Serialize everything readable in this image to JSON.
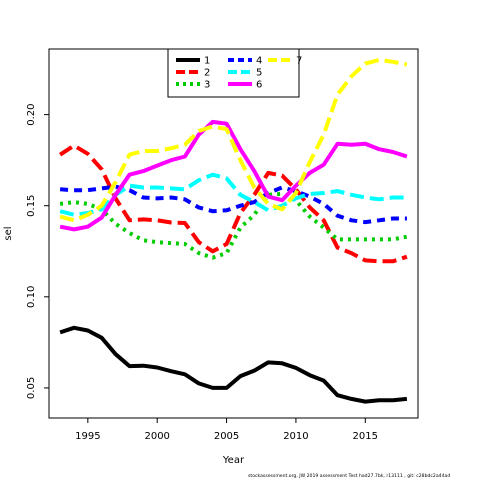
{
  "chart_data": {
    "type": "line",
    "xlabel": "Year",
    "ylabel": "sel",
    "xlim": [
      1992.2,
      2018.8
    ],
    "ylim": [
      0.0335,
      0.236
    ],
    "xticks": [
      1995,
      2000,
      2005,
      2010,
      2015
    ],
    "yticks": [
      0.05,
      0.1,
      0.15,
      0.2
    ],
    "xtick_labels": [
      "1995",
      "2000",
      "2005",
      "2010",
      "2015"
    ],
    "ytick_labels": [
      "0.05",
      "0.10",
      "0.15",
      "0.20"
    ],
    "legend_position": "top-center",
    "x": [
      1993,
      1994,
      1995,
      1996,
      1997,
      1998,
      1999,
      2000,
      2001,
      2002,
      2003,
      2004,
      2005,
      2006,
      2007,
      2008,
      2009,
      2010,
      2011,
      2012,
      2013,
      2014,
      2015,
      2016,
      2017,
      2018
    ],
    "series": [
      {
        "name": "1",
        "color": "#000000",
        "dash": "solid",
        "values": [
          0.0805,
          0.083,
          0.0815,
          0.0775,
          0.0685,
          0.062,
          0.0622,
          0.0612,
          0.0592,
          0.0575,
          0.0525,
          0.05,
          0.05,
          0.0565,
          0.0595,
          0.064,
          0.0635,
          0.061,
          0.057,
          0.054,
          0.046,
          0.044,
          0.0425,
          0.0432,
          0.0432,
          0.044
        ]
      },
      {
        "name": "2",
        "color": "#ff0000",
        "dash": "long",
        "values": [
          0.178,
          0.183,
          0.1785,
          0.17,
          0.154,
          0.142,
          0.1425,
          0.142,
          0.1408,
          0.1405,
          0.13,
          0.125,
          0.129,
          0.146,
          0.156,
          0.168,
          0.1665,
          0.159,
          0.149,
          0.142,
          0.127,
          0.124,
          0.12,
          0.1195,
          0.1195,
          0.122
        ]
      },
      {
        "name": "3",
        "color": "#00cd00",
        "dash": "dot",
        "values": [
          0.151,
          0.152,
          0.151,
          0.148,
          0.14,
          0.135,
          0.131,
          0.13,
          0.1295,
          0.129,
          0.124,
          0.1215,
          0.124,
          0.138,
          0.145,
          0.156,
          0.1565,
          0.153,
          0.144,
          0.138,
          0.1315,
          0.1315,
          0.1315,
          0.1315,
          0.1315,
          0.133
        ]
      },
      {
        "name": "4",
        "color": "#0000ff",
        "dash": "dash",
        "values": [
          0.159,
          0.1585,
          0.1585,
          0.1595,
          0.1605,
          0.1585,
          0.1545,
          0.154,
          0.1545,
          0.1535,
          0.149,
          0.147,
          0.1475,
          0.15,
          0.152,
          0.157,
          0.16,
          0.158,
          0.155,
          0.151,
          0.1445,
          0.142,
          0.141,
          0.142,
          0.143,
          0.143
        ]
      },
      {
        "name": "5",
        "color": "#00ffff",
        "dash": "long",
        "values": [
          0.147,
          0.145,
          0.146,
          0.148,
          0.156,
          0.161,
          0.16,
          0.16,
          0.1595,
          0.159,
          0.164,
          0.167,
          0.165,
          0.156,
          0.152,
          0.1475,
          0.15,
          0.154,
          0.1565,
          0.157,
          0.158,
          0.156,
          0.1545,
          0.1535,
          0.1545,
          0.1545
        ]
      },
      {
        "name": "6",
        "color": "#ff00ff",
        "dash": "solid",
        "values": [
          0.1385,
          0.137,
          0.1385,
          0.1435,
          0.156,
          0.167,
          0.169,
          0.172,
          0.175,
          0.177,
          0.189,
          0.196,
          0.195,
          0.181,
          0.169,
          0.155,
          0.153,
          0.161,
          0.168,
          0.1725,
          0.184,
          0.1835,
          0.184,
          0.181,
          0.1795,
          0.177
        ]
      },
      {
        "name": "7",
        "color": "#ffff00",
        "dash": "long",
        "values": [
          0.144,
          0.142,
          0.145,
          0.15,
          0.163,
          0.178,
          0.18,
          0.18,
          0.1815,
          0.1835,
          0.191,
          0.1935,
          0.192,
          0.175,
          0.16,
          0.151,
          0.148,
          0.157,
          0.174,
          0.189,
          0.211,
          0.221,
          0.228,
          0.23,
          0.229,
          0.2275
        ]
      }
    ]
  },
  "footer": "stockassessment.org,  JW  2019  assessment  Test  had27.7bk,  r13111 ,  git:  c28bdc2a44ad"
}
